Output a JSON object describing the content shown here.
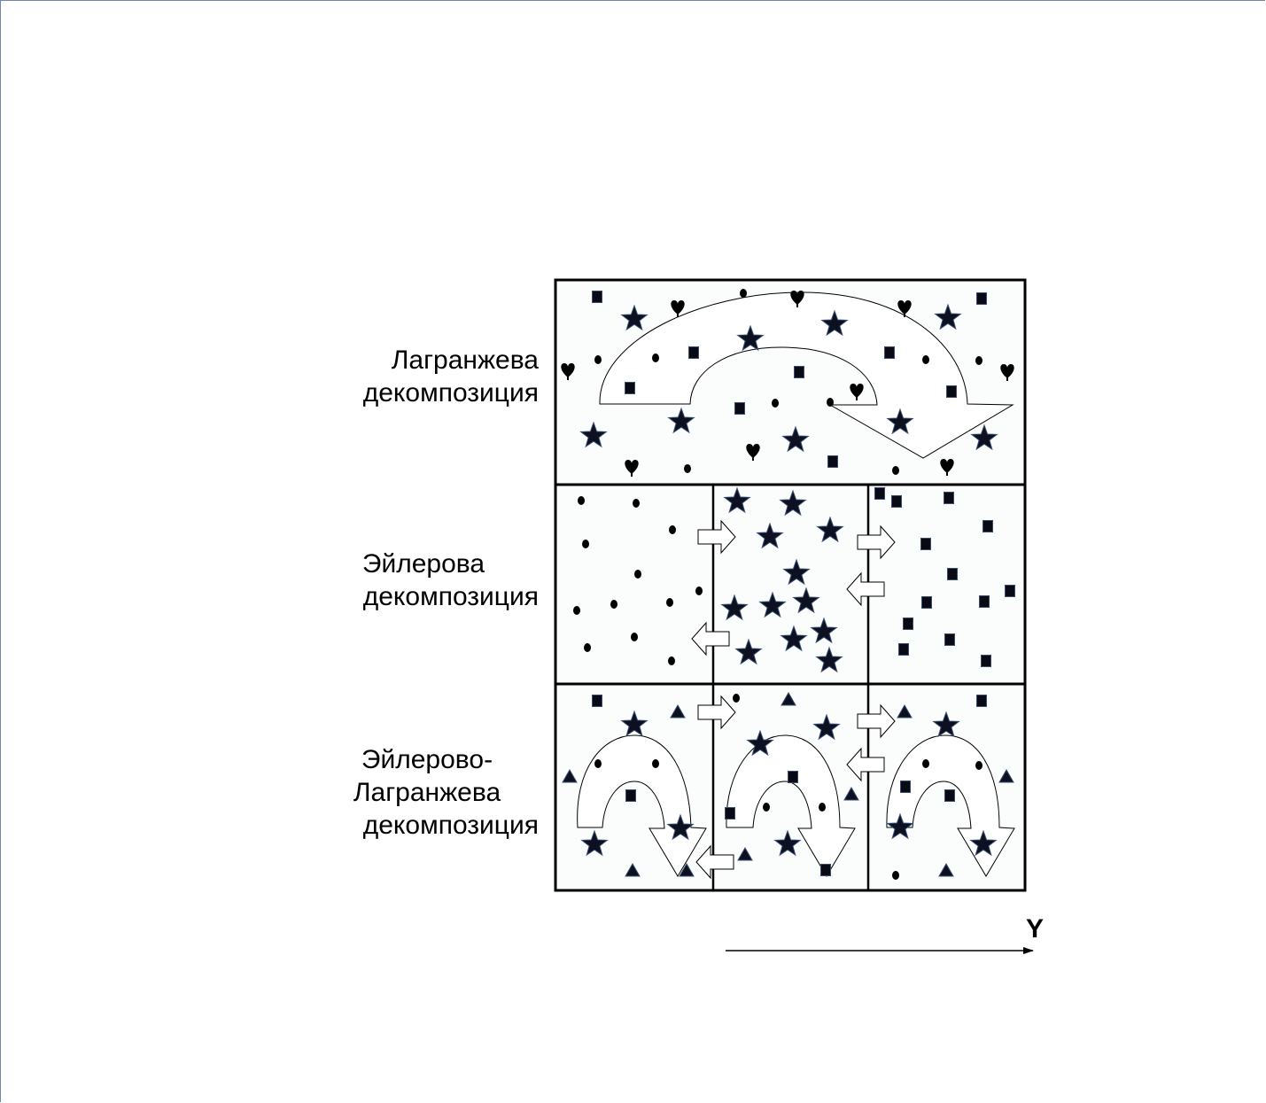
{
  "rows": [
    {
      "id": "lagrangian",
      "label_lines": [
        "Лагранжева",
        "декомпозиция"
      ]
    },
    {
      "id": "eulerian",
      "label_lines": [
        "Эйлерова",
        "декомпозиция"
      ]
    },
    {
      "id": "euler-lagrangian",
      "label_lines": [
        "Эйлерово-",
        "Лагранжева",
        "декомпозиция"
      ]
    }
  ],
  "axis": {
    "label": "Y"
  },
  "particle_types": [
    "circle",
    "square",
    "star",
    "heart",
    "triangle"
  ]
}
